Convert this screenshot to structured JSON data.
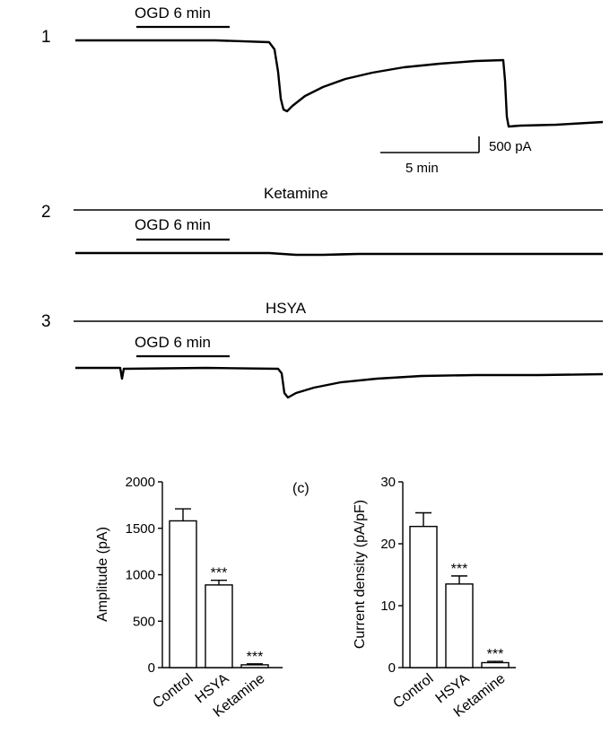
{
  "traces": {
    "rows": [
      {
        "number": "1",
        "drug_label": "",
        "ogd_label": "OGD 6 min"
      },
      {
        "number": "2",
        "drug_label": "Ketamine",
        "ogd_label": "OGD 6 min"
      },
      {
        "number": "3",
        "drug_label": "HSYA",
        "ogd_label": "OGD 6 min"
      }
    ],
    "scale_bar": {
      "time_label": "5 min",
      "current_label": "500 pA"
    }
  },
  "panel_c_label": "(c)",
  "chart_data": [
    {
      "type": "bar",
      "categories": [
        "Control",
        "HSYA",
        "Ketamine"
      ],
      "values": [
        1580,
        890,
        30
      ],
      "errors": [
        130,
        50,
        10
      ],
      "significance": [
        "",
        "***",
        "***"
      ],
      "ylabel": "Amplitude (pA)",
      "ylim": [
        0,
        2000
      ],
      "yticks": [
        "0",
        "500",
        "1000",
        "1500",
        "2000"
      ],
      "bar_color": "#ffffff"
    },
    {
      "type": "bar",
      "categories": [
        "Control",
        "HSYA",
        "Ketamine"
      ],
      "values": [
        22.8,
        13.5,
        0.8
      ],
      "errors": [
        2.2,
        1.3,
        0.2
      ],
      "significance": [
        "",
        "***",
        "***"
      ],
      "ylabel": "Current density (pA/pF)",
      "ylim": [
        0,
        30
      ],
      "yticks": [
        "0",
        "10",
        "20",
        "30"
      ],
      "bar_color": "#ffffff"
    }
  ]
}
